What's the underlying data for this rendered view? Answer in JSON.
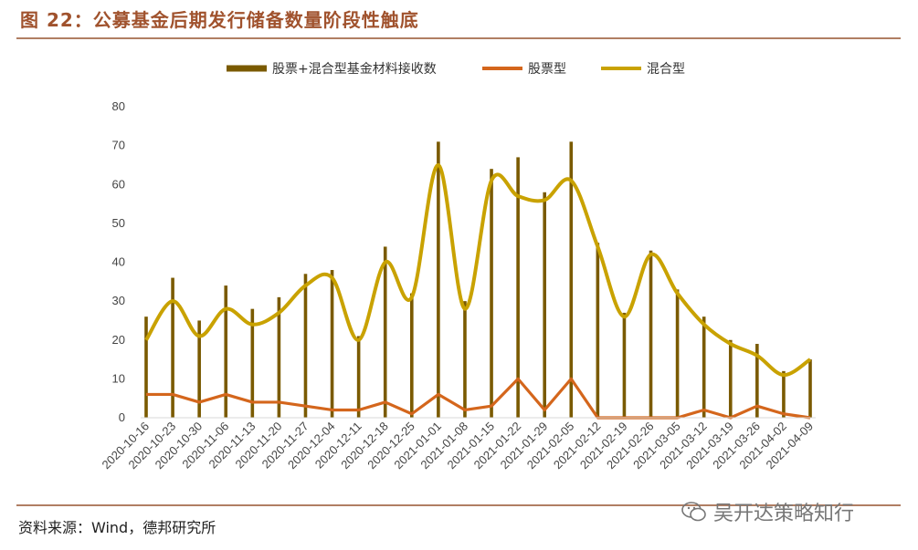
{
  "header": {
    "title": "图 22：公募基金后期发行储备数量阶段性触底"
  },
  "source": "资料来源：Wind，德邦研究所",
  "watermark": {
    "text": "吴开达策略知行",
    "icon": "wechat-icon"
  },
  "colors": {
    "bar": "#7a5a00",
    "stock": "#d4661c",
    "mixed": "#c9a200",
    "accent": "#a0522d"
  },
  "chart_data": {
    "type": "bar",
    "categories": [
      "2020-10-16",
      "2020-10-23",
      "2020-10-30",
      "2020-11-06",
      "2020-11-13",
      "2020-11-20",
      "2020-11-27",
      "2020-12-04",
      "2020-12-11",
      "2020-12-18",
      "2020-12-25",
      "2021-01-01",
      "2021-01-08",
      "2021-01-15",
      "2021-01-22",
      "2021-01-29",
      "2021-02-05",
      "2021-02-12",
      "2021-02-19",
      "2021-02-26",
      "2021-03-05",
      "2021-03-12",
      "2021-03-19",
      "2021-03-26",
      "2021-04-02",
      "2021-04-09"
    ],
    "series": [
      {
        "name": "股票+混合型基金材料接收数",
        "type": "bar",
        "values": [
          26,
          36,
          25,
          34,
          28,
          31,
          37,
          38,
          21,
          44,
          32,
          71,
          30,
          64,
          67,
          58,
          71,
          45,
          27,
          43,
          33,
          26,
          20,
          19,
          12,
          15
        ]
      },
      {
        "name": "股票型",
        "type": "line",
        "values": [
          6,
          6,
          4,
          6,
          4,
          4,
          3,
          2,
          2,
          4,
          1,
          6,
          2,
          3,
          10,
          2,
          10,
          0,
          0,
          0,
          0,
          2,
          0,
          3,
          1,
          0
        ]
      },
      {
        "name": "混合型",
        "type": "line",
        "values": [
          20,
          30,
          21,
          28,
          24,
          27,
          34,
          36,
          20,
          40,
          31,
          65,
          28,
          61,
          57,
          56,
          61,
          44,
          26,
          42,
          32,
          24,
          19,
          16,
          11,
          15
        ]
      }
    ],
    "ylim": [
      0,
      80
    ],
    "yticks": [
      0,
      10,
      20,
      30,
      40,
      50,
      60,
      70,
      80
    ],
    "legend": "top",
    "grid": false
  }
}
